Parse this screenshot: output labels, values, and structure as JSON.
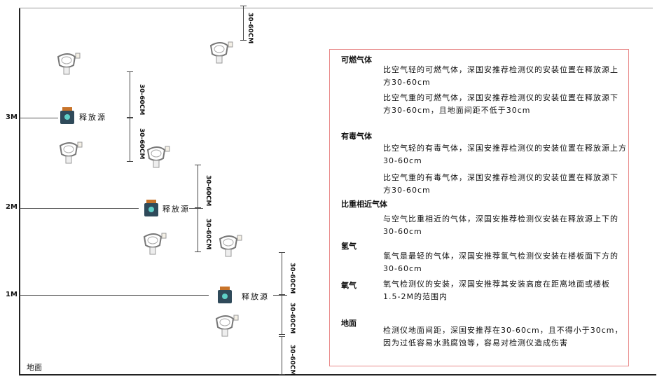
{
  "diagram": {
    "levels": [
      "3M",
      "2M",
      "1M"
    ],
    "ground_label": "地面",
    "source_label": "释放源",
    "dimension_label": "30-60CM"
  },
  "info": {
    "sections": [
      {
        "title": "可燃气体",
        "paragraphs": [
          "比空气轻的可燃气体，深国安推荐检测仪的安装位置在释放源上方30-60cm",
          "比空气重的可燃气体，深国安推荐检测仪的安装位置在释放源下方30-60cm，且地面间距不低于30cm"
        ]
      },
      {
        "title": "有毒气体",
        "paragraphs": [
          "比空气轻的有毒气体，深国安推荐检测仪的安装位置在释放源上方30-60cm",
          "比空气重的有毒气体，深国安推荐检测仪的安装位置在释放源下方30-60cm"
        ]
      },
      {
        "title": "比重相近气体",
        "paragraphs": [
          "与空气比重相近的气体，深国安推荐检测仪安装在释放源上下的30-60cm"
        ]
      },
      {
        "title": "氢气",
        "paragraphs": [
          "氢气是最轻的气体，深国安推荐氢气检测仪安装在楼板面下方的30-60cm"
        ]
      },
      {
        "title": "氧气",
        "paragraphs": [
          "氧气检测仪的安装，深国安推荐其安装高度在距离地面或楼板1.5-2M的范围内"
        ]
      },
      {
        "title": "地面",
        "paragraphs": [
          "检测仪地面间距，深国安推荐在30-60cm，且不得小于30cm，因为过低容易水溅腐蚀等，容易对检测仪造成伤害"
        ]
      }
    ]
  },
  "colors": {
    "box_border": "#e98a8a",
    "source_body": "#2f4a5a",
    "source_cap": "#c8742a",
    "source_face": "#5fd0c8"
  }
}
